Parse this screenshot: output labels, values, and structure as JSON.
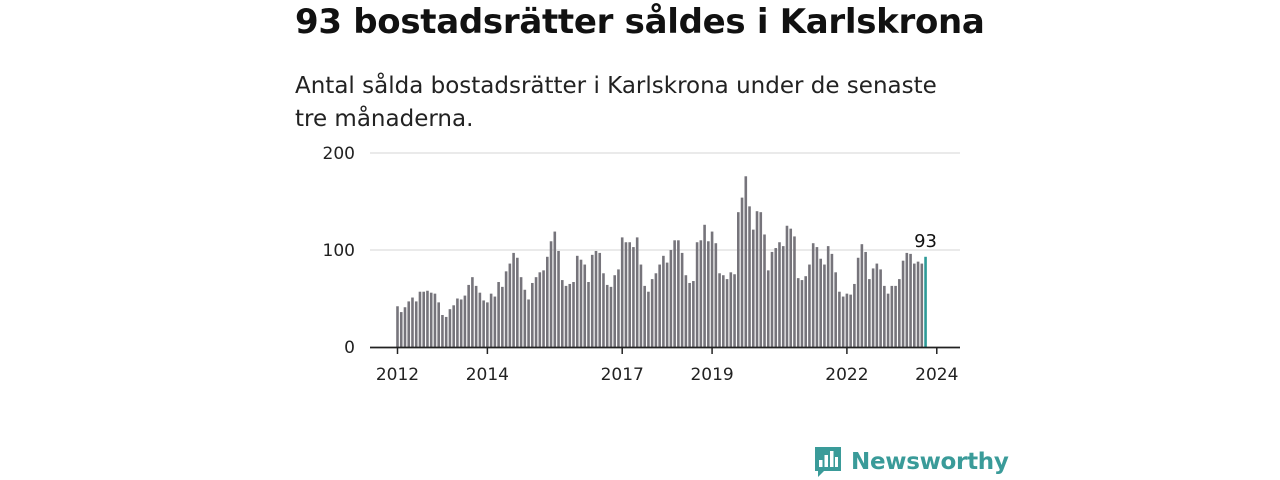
{
  "title": "93 bostadsrätter såldes i Karlskrona",
  "subtitle": "Antal sålda bostadsrätter i Karlskrona under de senaste tre månaderna.",
  "brand": {
    "name": "Newsworthy",
    "logo_icon": "bar-chart-speech-bubble-icon"
  },
  "colors": {
    "bar": "#76747b",
    "highlight": "#2d9a97",
    "grid": "#dddddd",
    "axis": "#222222",
    "brand": "#3a9b99"
  },
  "chart_data": {
    "type": "bar",
    "x_start": "2012-01",
    "x_step": "month",
    "xticks": [
      "2012",
      "2014",
      "2017",
      "2019",
      "2022",
      "2024"
    ],
    "ylim": [
      0,
      200
    ],
    "yticks": [
      "0",
      "100",
      "200"
    ],
    "grid": true,
    "highlight_label": "93",
    "values": [
      42,
      36,
      41,
      47,
      51,
      47,
      57,
      57,
      58,
      56,
      55,
      46,
      33,
      31,
      39,
      43,
      50,
      49,
      53,
      64,
      72,
      63,
      56,
      48,
      46,
      55,
      52,
      67,
      62,
      78,
      86,
      97,
      92,
      72,
      59,
      49,
      66,
      72,
      77,
      79,
      93,
      109,
      119,
      99,
      69,
      63,
      65,
      67,
      94,
      90,
      85,
      67,
      95,
      99,
      97,
      76,
      64,
      62,
      74,
      80,
      113,
      108,
      108,
      103,
      113,
      85,
      63,
      57,
      70,
      76,
      85,
      94,
      87,
      100,
      110,
      110,
      97,
      74,
      66,
      68,
      108,
      110,
      126,
      109,
      119,
      107,
      76,
      74,
      70,
      77,
      75,
      139,
      154,
      176,
      145,
      121,
      140,
      139,
      116,
      79,
      98,
      102,
      108,
      104,
      125,
      122,
      114,
      71,
      69,
      73,
      85,
      107,
      103,
      91,
      85,
      104,
      96,
      77,
      57,
      52,
      55,
      54,
      65,
      92,
      106,
      98,
      70,
      81,
      86,
      80,
      63,
      55,
      63,
      63,
      70,
      89,
      97,
      96,
      86,
      88,
      86,
      93
    ]
  }
}
